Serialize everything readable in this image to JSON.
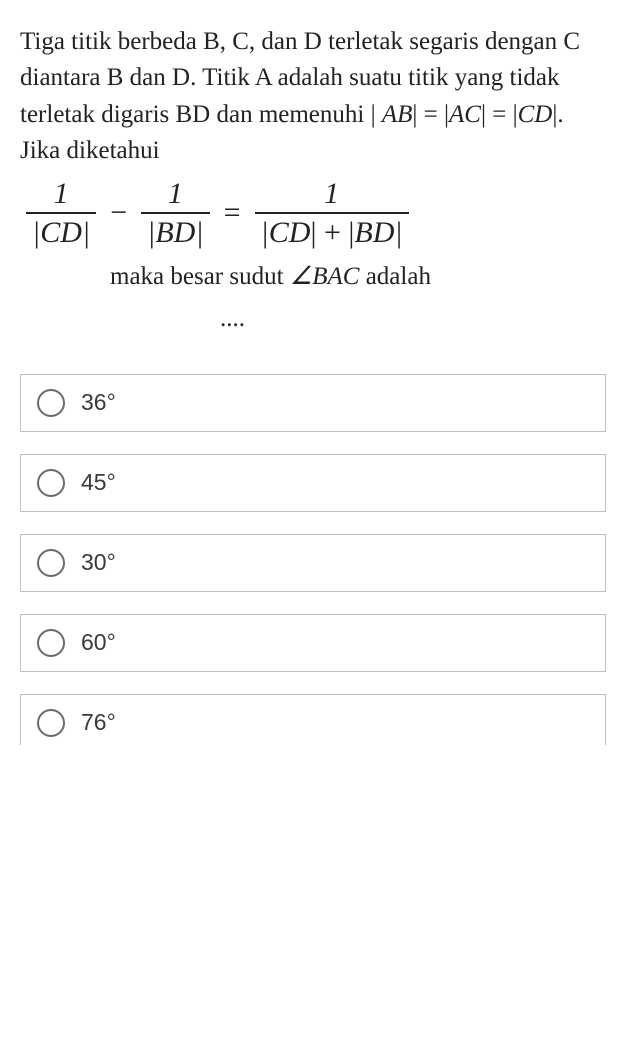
{
  "question": {
    "p1": "Tiga titik berbeda B, C, dan D terletak segaris dengan C diantara B dan D. Titik A adalah suatu titik yang tidak terletak digaris BD dan memenuhi |",
    "p2_eq_lhs1": "AB",
    "p2_bar": "| = |",
    "p2_eq_lhs2": "AC",
    "p2_bar2": "| = |",
    "p2_eq_rhs": "CD",
    "p2_end": "|. Jika diketahui"
  },
  "equation": {
    "f1_num": "1",
    "f1_den_l": "|",
    "f1_den_v": "CD",
    "f1_den_r": "|",
    "minus": "−",
    "f2_num": "1",
    "f2_den_l": "|",
    "f2_den_v": "BD",
    "f2_den_r": "|",
    "equals": "=",
    "f3_num": "1",
    "f3_den_l": "|",
    "f3_den_v1": "CD",
    "f3_den_mid": "| + |",
    "f3_den_v2": "BD",
    "f3_den_r": "|"
  },
  "tail": {
    "t1": "maka besar sudut ",
    "angle": "∠",
    "bac": "BAC",
    "t2": " adalah",
    "dots": "...."
  },
  "options": [
    {
      "label": "36°"
    },
    {
      "label": "45°"
    },
    {
      "label": "30°"
    },
    {
      "label": "60°"
    },
    {
      "label": "76°"
    }
  ],
  "colors": {
    "text": "#222222",
    "border": "#bfbfbf",
    "radio_border": "#6b6b6b",
    "option_text": "#3a3a3a",
    "background": "#ffffff"
  }
}
